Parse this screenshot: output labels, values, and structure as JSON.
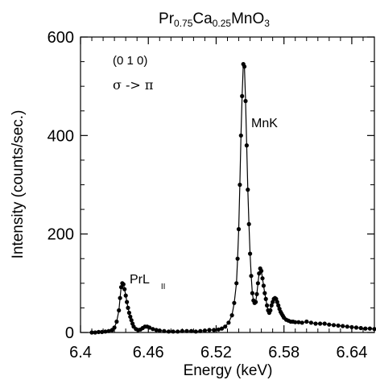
{
  "chart_data": {
    "type": "line",
    "title": {
      "base1": "Pr",
      "sub1": "0.75",
      "base2": "Ca",
      "sub2": "0.25",
      "base3": "MnO",
      "sub3": "3"
    },
    "xlabel": "Energy  (keV)",
    "ylabel": "Intensity  (counts/sec.)",
    "xlim": [
      6.4,
      6.66
    ],
    "ylim": [
      0,
      600
    ],
    "xticks": [
      6.4,
      6.46,
      6.52,
      6.58,
      6.64
    ],
    "xtick_labels": [
      "6.4",
      "6.46",
      "6.52",
      "6.58",
      "6.64"
    ],
    "yticks": [
      0,
      200,
      400,
      600
    ],
    "ytick_labels": [
      "0",
      "200",
      "400",
      "600"
    ],
    "grid": false,
    "annotations": {
      "reflection": "(0 1 0)",
      "polarization": "σ -> π",
      "mn_label": "MnK",
      "pr_label_main": "PrL",
      "pr_label_sub": "II"
    },
    "series": [
      {
        "x": [
          6.41,
          6.413,
          6.416,
          6.419,
          6.422,
          6.425,
          6.428,
          6.43,
          6.432,
          6.434,
          6.435,
          6.436,
          6.437,
          6.438,
          6.439,
          6.44,
          6.441,
          6.442,
          6.443,
          6.444,
          6.445,
          6.446,
          6.447,
          6.449,
          6.451,
          6.453,
          6.455,
          6.457,
          6.459,
          6.461,
          6.464,
          6.467,
          6.47,
          6.474,
          6.478,
          6.482,
          6.486,
          6.49,
          6.494,
          6.498,
          6.502,
          6.506,
          6.51,
          6.514,
          6.518,
          6.522,
          6.525,
          6.528,
          6.531,
          6.534,
          6.536,
          6.538,
          6.539,
          6.54,
          6.541,
          6.542,
          6.543,
          6.544,
          6.545,
          6.546,
          6.547,
          6.548,
          6.549,
          6.55,
          6.551,
          6.552,
          6.553,
          6.554,
          6.555,
          6.556,
          6.557,
          6.558,
          6.559,
          6.56,
          6.561,
          6.562,
          6.563,
          6.564,
          6.565,
          6.566,
          6.567,
          6.568,
          6.569,
          6.57,
          6.571,
          6.572,
          6.573,
          6.574,
          6.575,
          6.576,
          6.577,
          6.578,
          6.579,
          6.58,
          6.582,
          6.584,
          6.586,
          6.588,
          6.59,
          6.593,
          6.596,
          6.6,
          6.604,
          6.608,
          6.612,
          6.616,
          6.62,
          6.624,
          6.628,
          6.632,
          6.636,
          6.64,
          6.644,
          6.648,
          6.652,
          6.656,
          6.66
        ],
        "y": [
          0,
          0,
          1,
          1,
          2,
          3,
          5,
          10,
          22,
          45,
          70,
          92,
          100,
          98,
          88,
          75,
          62,
          50,
          40,
          32,
          25,
          18,
          12,
          7,
          5,
          6,
          9,
          12,
          12,
          10,
          7,
          5,
          4,
          3,
          2,
          2,
          2,
          3,
          3,
          3,
          2,
          3,
          4,
          5,
          5,
          6,
          8,
          12,
          20,
          35,
          60,
          100,
          150,
          210,
          300,
          400,
          480,
          545,
          540,
          470,
          380,
          290,
          220,
          160,
          115,
          80,
          65,
          60,
          62,
          78,
          100,
          120,
          130,
          125,
          110,
          95,
          80,
          68,
          55,
          45,
          40,
          45,
          55,
          62,
          68,
          70,
          68,
          62,
          55,
          48,
          42,
          38,
          34,
          30,
          26,
          24,
          22,
          22,
          21,
          21,
          20,
          22,
          20,
          18,
          18,
          18,
          16,
          15,
          14,
          13,
          12,
          11,
          10,
          9,
          8,
          8,
          7
        ]
      }
    ]
  }
}
